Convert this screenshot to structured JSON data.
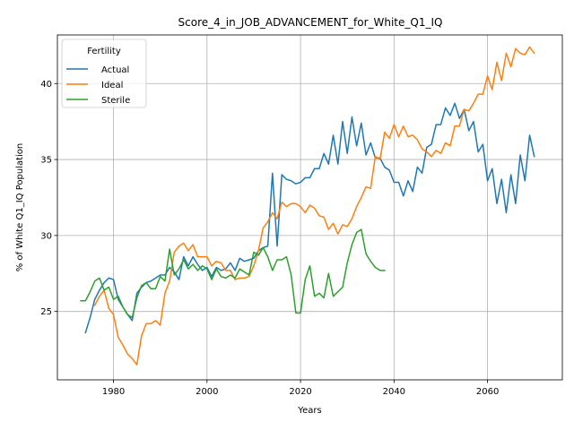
{
  "chart_data": {
    "type": "line",
    "title": "Score_4_in_JOB_ADVANCEMENT_for_White_Q1_IQ",
    "xlabel": "Years",
    "ylabel": "% of White Q1_IQ Population",
    "xlim": [
      1968,
      2076
    ],
    "ylim": [
      20.5,
      43.2
    ],
    "xticks": [
      1980,
      2000,
      2020,
      2040,
      2060
    ],
    "yticks": [
      25,
      30,
      35,
      40
    ],
    "grid": true,
    "legend": {
      "title": "Fertility",
      "location": "upper-left"
    },
    "series": [
      {
        "name": "Actual",
        "color": "#1f77b4",
        "x": [
          1974,
          1975,
          1976,
          1977,
          1978,
          1979,
          1980,
          1981,
          1982,
          1983,
          1984,
          1985,
          1986,
          1987,
          1988,
          1989,
          1990,
          1991,
          1992,
          1993,
          1994,
          1995,
          1996,
          1997,
          1998,
          1999,
          2000,
          2001,
          2002,
          2003,
          2004,
          2005,
          2006,
          2007,
          2008,
          2009,
          2010,
          2011,
          2012,
          2013,
          2014,
          2015,
          2016,
          2017,
          2018,
          2019,
          2020,
          2021,
          2022,
          2023,
          2024,
          2025,
          2026,
          2027,
          2028,
          2029,
          2030,
          2031,
          2032,
          2033,
          2034,
          2035,
          2036,
          2037,
          2038,
          2039,
          2040,
          2041,
          2042,
          2043,
          2044,
          2045,
          2046,
          2047,
          2048,
          2049,
          2050,
          2051,
          2052,
          2053,
          2054,
          2055,
          2056,
          2057,
          2058,
          2059,
          2060,
          2061,
          2062,
          2063,
          2064,
          2065,
          2066,
          2067,
          2068,
          2069,
          2070
        ],
        "values": [
          23.6,
          24.6,
          25.8,
          26.4,
          26.9,
          27.2,
          27.1,
          25.8,
          25.3,
          24.8,
          24.4,
          26.2,
          26.6,
          26.9,
          27.0,
          27.2,
          27.4,
          27.4,
          27.9,
          27.6,
          27.1,
          28.6,
          28.0,
          28.6,
          28.1,
          27.7,
          27.9,
          27.3,
          27.9,
          27.7,
          27.8,
          28.2,
          27.7,
          28.5,
          28.3,
          28.4,
          28.5,
          29.0,
          29.2,
          29.3,
          34.1,
          29.3,
          34.0,
          33.7,
          33.6,
          33.4,
          33.5,
          33.8,
          33.8,
          34.4,
          34.4,
          35.4,
          34.7,
          36.6,
          34.7,
          37.5,
          35.4,
          37.8,
          35.9,
          37.4,
          35.3,
          36.1,
          35.1,
          35.1,
          34.5,
          34.3,
          33.5,
          33.5,
          32.6,
          33.6,
          32.9,
          34.5,
          34.1,
          35.8,
          36.0,
          37.3,
          37.3,
          38.4,
          37.9,
          38.7,
          37.7,
          38.3,
          36.9,
          37.5,
          35.5,
          36.0,
          33.6,
          34.4,
          32.1,
          33.7,
          31.5,
          34.0,
          32.1,
          35.3,
          33.6,
          36.6,
          35.2
        ]
      },
      {
        "name": "Ideal",
        "color": "#ff7f0e",
        "x": [
          1974,
          1975,
          1976,
          1977,
          1978,
          1979,
          1980,
          1981,
          1982,
          1983,
          1984,
          1985,
          1986,
          1987,
          1988,
          1989,
          1990,
          1991,
          1992,
          1993,
          1994,
          1995,
          1996,
          1997,
          1998,
          1999,
          2000,
          2001,
          2002,
          2003,
          2004,
          2005,
          2006,
          2007,
          2008,
          2009,
          2010,
          2011,
          2012,
          2013,
          2014,
          2015,
          2016,
          2017,
          2018,
          2019,
          2020,
          2021,
          2022,
          2023,
          2024,
          2025,
          2026,
          2027,
          2028,
          2029,
          2030,
          2031,
          2032,
          2033,
          2034,
          2035,
          2036,
          2037,
          2038,
          2039,
          2040,
          2041,
          2042,
          2043,
          2044,
          2045,
          2046,
          2047,
          2048,
          2049,
          2050,
          2051,
          2052,
          2053,
          2054,
          2055,
          2056,
          2057,
          2058,
          2059,
          2060,
          2061,
          2062,
          2063,
          2064,
          2065,
          2066,
          2067,
          2068,
          2069,
          2070
        ],
        "values": [
          null,
          null,
          25.4,
          26.0,
          26.4,
          25.2,
          24.8,
          23.3,
          22.8,
          22.2,
          21.9,
          21.5,
          23.4,
          24.2,
          24.2,
          24.4,
          24.1,
          26.2,
          27.0,
          28.9,
          29.3,
          29.5,
          29.0,
          29.4,
          28.6,
          28.6,
          28.6,
          28.0,
          28.3,
          28.2,
          27.7,
          27.7,
          27.1,
          27.2,
          27.2,
          27.3,
          28.0,
          29.0,
          30.5,
          30.9,
          31.5,
          31.1,
          32.2,
          31.9,
          32.1,
          32.1,
          31.9,
          31.5,
          32.0,
          31.8,
          31.3,
          31.2,
          30.4,
          30.8,
          30.1,
          30.7,
          30.6,
          31.1,
          31.9,
          32.5,
          33.2,
          33.1,
          35.2,
          35.0,
          36.8,
          36.4,
          37.3,
          36.5,
          37.2,
          36.5,
          36.6,
          36.3,
          35.7,
          35.5,
          35.2,
          35.6,
          35.4,
          36.1,
          35.9,
          37.2,
          37.2,
          38.3,
          38.2,
          38.7,
          39.3,
          39.3,
          40.5,
          39.6,
          41.4,
          40.2,
          42.0,
          41.1,
          42.3,
          42.0,
          41.9,
          42.4,
          42.0
        ]
      },
      {
        "name": "Sterile",
        "color": "#2ca02c",
        "x": [
          1973,
          1974,
          1975,
          1976,
          1977,
          1978,
          1979,
          1980,
          1981,
          1982,
          1983,
          1984,
          1985,
          1986,
          1987,
          1988,
          1989,
          1990,
          1991,
          1992,
          1993,
          1994,
          1995,
          1996,
          1997,
          1998,
          1999,
          2000,
          2001,
          2002,
          2003,
          2004,
          2005,
          2006,
          2007,
          2008,
          2009,
          2010,
          2011,
          2012,
          2013,
          2014,
          2015,
          2016,
          2017,
          2018,
          2019,
          2020,
          2021,
          2022,
          2023,
          2024,
          2025,
          2026,
          2027,
          2028,
          2029,
          2030,
          2031,
          2032,
          2033,
          2034,
          2035,
          2036,
          2037,
          2038
        ],
        "values": [
          25.7,
          25.7,
          26.3,
          27.0,
          27.2,
          26.4,
          26.6,
          25.8,
          26.0,
          25.3,
          24.8,
          24.6,
          25.9,
          26.7,
          26.9,
          26.5,
          26.5,
          27.3,
          27.0,
          29.1,
          27.4,
          27.8,
          28.4,
          27.8,
          28.1,
          27.7,
          28.0,
          27.8,
          27.1,
          27.8,
          27.3,
          27.2,
          27.4,
          27.2,
          27.8,
          27.6,
          27.4,
          28.9,
          28.7,
          29.2,
          28.6,
          27.7,
          28.4,
          28.4,
          28.6,
          27.4,
          24.9,
          24.9,
          27.1,
          28.0,
          26.0,
          26.2,
          25.9,
          27.5,
          26.0,
          26.3,
          26.6,
          28.2,
          29.4,
          30.2,
          30.4,
          28.8,
          28.3,
          27.9,
          27.7,
          27.7
        ]
      }
    ]
  }
}
